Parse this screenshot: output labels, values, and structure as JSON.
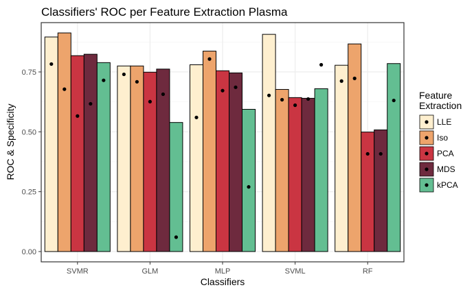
{
  "chart_data": {
    "type": "bar",
    "title": "Classifiers' ROC per Feature Extraction Plasma",
    "xlabel": "Classifiers",
    "ylabel": "ROC & Specificity",
    "ylim": [
      -0.043,
      0.956
    ],
    "yticks": [
      0.0,
      0.25,
      0.5,
      0.75
    ],
    "ytick_labels": [
      "0.00",
      "0.25",
      "0.50",
      "0.75"
    ],
    "grid": true,
    "legend": {
      "title_lines": [
        "Feature",
        "Extraction"
      ],
      "placement": "right"
    },
    "categories": [
      "SVMR",
      "GLM",
      "MLP",
      "SVML",
      "RF"
    ],
    "series": [
      {
        "name": "LLE",
        "color": "#FEEFCF",
        "values": [
          0.896,
          0.775,
          0.78,
          0.907,
          0.778
        ],
        "specificity": [
          0.783,
          0.74,
          0.56,
          0.652,
          0.712
        ]
      },
      {
        "name": "Iso",
        "color": "#EDA46C",
        "values": [
          0.913,
          0.775,
          0.837,
          0.677,
          0.867
        ],
        "specificity": [
          0.678,
          0.709,
          0.804,
          0.634,
          0.723
        ]
      },
      {
        "name": "PCA",
        "color": "#CA3542",
        "values": [
          0.818,
          0.749,
          0.755,
          0.643,
          0.499
        ],
        "specificity": [
          0.566,
          0.626,
          0.672,
          0.611,
          0.408
        ]
      },
      {
        "name": "MDS",
        "color": "#6E2A3E",
        "values": [
          0.824,
          0.762,
          0.746,
          0.64,
          0.508
        ],
        "specificity": [
          0.617,
          0.657,
          0.686,
          0.637,
          0.408
        ]
      },
      {
        "name": "kPCA",
        "color": "#63BE92",
        "values": [
          0.789,
          0.539,
          0.594,
          0.68,
          0.785
        ],
        "specificity": [
          0.715,
          0.06,
          0.27,
          0.78,
          0.631
        ]
      }
    ]
  }
}
